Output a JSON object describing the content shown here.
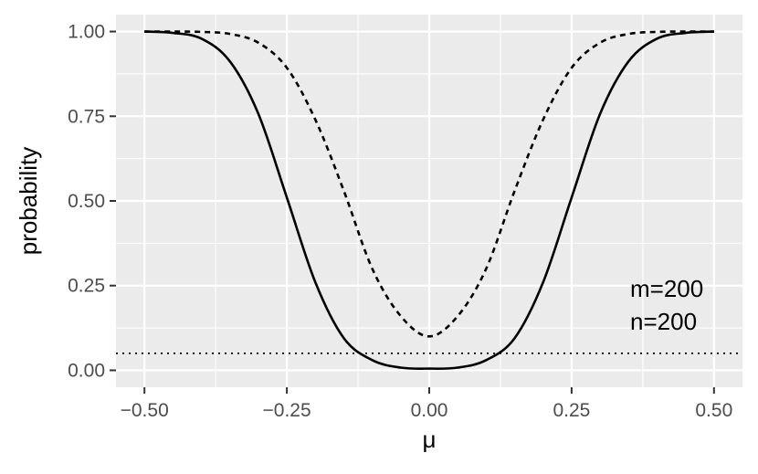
{
  "chart_data": {
    "type": "line",
    "title": "",
    "xlabel": "μ",
    "ylabel": "probability",
    "xlim": [
      -0.5,
      0.5
    ],
    "ylim": [
      0,
      1
    ],
    "x_ticks": [
      "−0.50",
      "−0.25",
      "0.00",
      "0.25",
      "0.50"
    ],
    "x_tick_values": [
      -0.5,
      -0.25,
      0,
      0.25,
      0.5
    ],
    "y_ticks": [
      "0.00",
      "0.25",
      "0.50",
      "0.75",
      "1.00"
    ],
    "y_tick_values": [
      0,
      0.25,
      0.5,
      0.75,
      1.0
    ],
    "grid": true,
    "annotations": [
      "m=200",
      "n=200"
    ],
    "reference_line": {
      "y": 0.05,
      "style": "dotted"
    },
    "x": [
      -0.5,
      -0.45,
      -0.4,
      -0.35,
      -0.3,
      -0.25,
      -0.2,
      -0.15,
      -0.1,
      -0.05,
      0,
      0.05,
      0.1,
      0.15,
      0.2,
      0.25,
      0.3,
      0.35,
      0.4,
      0.45,
      0.5
    ],
    "series": [
      {
        "style": "solid",
        "values": [
          1.0,
          0.996,
          0.979,
          0.912,
          0.757,
          0.51,
          0.26,
          0.095,
          0.03,
          0.008,
          0.005,
          0.008,
          0.03,
          0.095,
          0.26,
          0.51,
          0.757,
          0.912,
          0.979,
          0.996,
          1.0
        ]
      },
      {
        "style": "dashed",
        "values": [
          1.0,
          1.0,
          0.999,
          0.993,
          0.967,
          0.893,
          0.74,
          0.53,
          0.3,
          0.16,
          0.1,
          0.16,
          0.3,
          0.53,
          0.74,
          0.893,
          0.967,
          0.993,
          0.999,
          1.0,
          1.0
        ]
      }
    ],
    "colors": {
      "panel": "#ebebeb",
      "grid": "#ffffff",
      "line": "#000000",
      "tick_text": "#4d4d4d"
    }
  }
}
